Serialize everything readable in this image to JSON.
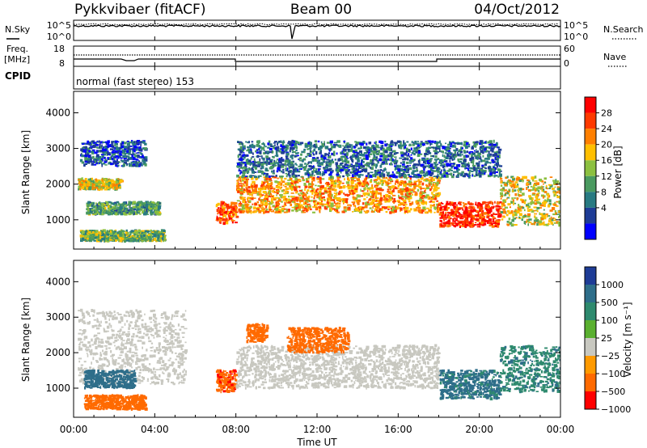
{
  "header": {
    "title": "Pykkvibaer (fitACF)",
    "beam": "Beam 00",
    "date": "04/Oct/2012"
  },
  "nsky_panel": {
    "left_label": "N.Sky",
    "right_label": "N.Search",
    "left_ticks": [
      "10^5",
      "10^0"
    ],
    "right_ticks": [
      "10^5",
      "10^0"
    ]
  },
  "freq_panel": {
    "left_label_line1": "Freq.",
    "left_label_line2": "[MHz]",
    "right_label": "Nave",
    "left_ticks": [
      "18",
      "8"
    ],
    "right_ticks": [
      "60",
      "0"
    ]
  },
  "cpid_panel": {
    "label": "CPID",
    "mode_text": "normal (fast stereo) 153"
  },
  "x_axis": {
    "title": "Time UT",
    "tick_labels": [
      "00:00",
      "04:00",
      "08:00",
      "12:00",
      "16:00",
      "20:00",
      "00:00"
    ]
  },
  "colors": {
    "power_scale": [
      "#0000ff",
      "#1e3c96",
      "#287a82",
      "#4a9a60",
      "#8cc040",
      "#ffbf00",
      "#ff7f00",
      "#ff3a00",
      "#ff0000"
    ],
    "velocity_scale": [
      "#1e3c96",
      "#2e6e8a",
      "#2e8a6e",
      "#5ab030",
      "#c8c8c0",
      "#ff9a00",
      "#ff6a00",
      "#ff0000"
    ]
  },
  "chart_data": [
    {
      "type": "heatmap",
      "title": "",
      "xlabel": "Time UT",
      "ylabel": "Slant Range [km]",
      "x_range": [
        "00:00",
        "24:00"
      ],
      "ylim": [
        180,
        4600
      ],
      "y_ticks": [
        "1000",
        "2000",
        "3000",
        "4000"
      ],
      "colorbar": {
        "label": "Power [dB]",
        "ticks": [
          "4",
          "8",
          "12",
          "16",
          "20",
          "24",
          "28"
        ],
        "range": [
          0,
          32
        ]
      },
      "regions": [
        {
          "t": [
            0.2,
            2.3
          ],
          "r": [
            1850,
            2150
          ],
          "power": 18
        },
        {
          "t": [
            0.3,
            3.5
          ],
          "r": [
            2500,
            3200
          ],
          "power": 6
        },
        {
          "t": [
            0.3,
            4.5
          ],
          "r": [
            400,
            700
          ],
          "power": 14
        },
        {
          "t": [
            0.6,
            4.2
          ],
          "r": [
            1150,
            1500
          ],
          "power": 12
        },
        {
          "t": [
            7.0,
            8.0
          ],
          "r": [
            900,
            1500
          ],
          "power": 26
        },
        {
          "t": [
            8.0,
            18.0
          ],
          "r": [
            1200,
            2200
          ],
          "power": 22
        },
        {
          "t": [
            8.0,
            21.0
          ],
          "r": [
            2200,
            3200
          ],
          "power": 8
        },
        {
          "t": [
            18.0,
            21.0
          ],
          "r": [
            800,
            1500
          ],
          "power": 28
        },
        {
          "t": [
            21.0,
            24.0
          ],
          "r": [
            850,
            2200
          ],
          "power": 18
        }
      ]
    },
    {
      "type": "heatmap",
      "title": "",
      "xlabel": "Time UT",
      "ylabel": "Slant Range [km]",
      "x_range": [
        "00:00",
        "24:00"
      ],
      "ylim": [
        180,
        4600
      ],
      "y_ticks": [
        "1000",
        "2000",
        "3000",
        "4000"
      ],
      "colorbar": {
        "label": "Velocity [m s⁻¹]",
        "ticks": [
          "1000",
          "500",
          "100",
          "25",
          "−25",
          "−100",
          "−500",
          "−1000"
        ]
      },
      "regions": [
        {
          "t": [
            0.2,
            5.5
          ],
          "r": [
            1100,
            3200
          ],
          "velocity": 0
        },
        {
          "t": [
            0.5,
            3.5
          ],
          "r": [
            400,
            800
          ],
          "velocity": -300
        },
        {
          "t": [
            0.5,
            3.0
          ],
          "r": [
            1000,
            1500
          ],
          "velocity": 200
        },
        {
          "t": [
            7.0,
            8.0
          ],
          "r": [
            900,
            1500
          ],
          "velocity": -400
        },
        {
          "t": [
            8.0,
            18.0
          ],
          "r": [
            1000,
            2200
          ],
          "velocity": 0
        },
        {
          "t": [
            8.5,
            9.5
          ],
          "r": [
            2300,
            2800
          ],
          "velocity": -300
        },
        {
          "t": [
            10.5,
            13.5
          ],
          "r": [
            2000,
            2700
          ],
          "velocity": -300
        },
        {
          "t": [
            18.0,
            21.0
          ],
          "r": [
            700,
            1500
          ],
          "velocity": 150
        },
        {
          "t": [
            21.0,
            24.0
          ],
          "r": [
            900,
            2200
          ],
          "velocity": 80
        }
      ]
    }
  ]
}
